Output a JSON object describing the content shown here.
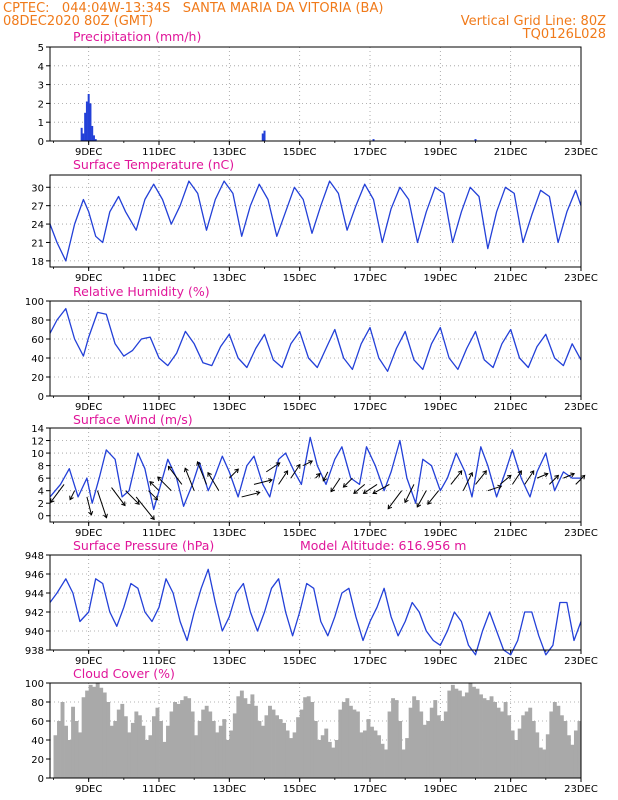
{
  "header": {
    "line1_left": "CPTEC:   044:04W-13:34S   SANTA MARIA DA VITORIA (BA)",
    "line2_left": "08DEC2020 80Z (GMT)",
    "line2_right": "Vertical Grid Line: 80Z",
    "line3_right": "TQ0126L028"
  },
  "colors": {
    "header": "#f07a1a",
    "title": "#e0169a",
    "line": "#2340d8",
    "bar": "#2340d8",
    "cloud": "#a9a9a9",
    "arrow": "#000000"
  },
  "x_axis": {
    "range": [
      7.9,
      23.0
    ],
    "ticks": [
      9,
      11,
      13,
      15,
      17,
      19,
      21,
      23
    ],
    "tick_labels": [
      "9DEC",
      "11DEC",
      "13DEC",
      "15DEC",
      "17DEC",
      "19DEC",
      "21DEC",
      "23DEC"
    ]
  },
  "chart_data": [
    {
      "type": "bar",
      "title": "Precipitation (mm/h)",
      "ylim": [
        0,
        5
      ],
      "yticks": [
        0,
        1,
        2,
        3,
        4,
        5
      ],
      "x": [
        8.8,
        8.85,
        8.9,
        8.95,
        9.0,
        9.05,
        9.1,
        9.15,
        9.2,
        13.95,
        14.0,
        17.1,
        20.0
      ],
      "values": [
        0.7,
        0.4,
        1.5,
        2.1,
        2.5,
        2.0,
        0.8,
        0.3,
        0.1,
        0.4,
        0.55,
        0.1,
        0.1
      ]
    },
    {
      "type": "line",
      "title": "Surface Temperature (nC)",
      "ylim": [
        17,
        32
      ],
      "yticks": [
        18,
        21,
        24,
        27,
        30
      ],
      "x": [
        7.9,
        8.1,
        8.35,
        8.6,
        8.85,
        9.0,
        9.2,
        9.4,
        9.6,
        9.85,
        10.05,
        10.35,
        10.6,
        10.85,
        11.1,
        11.35,
        11.6,
        11.85,
        12.1,
        12.35,
        12.6,
        12.85,
        13.1,
        13.35,
        13.6,
        13.85,
        14.1,
        14.35,
        14.6,
        14.85,
        15.1,
        15.35,
        15.6,
        15.85,
        16.1,
        16.35,
        16.6,
        16.85,
        17.1,
        17.35,
        17.6,
        17.85,
        18.1,
        18.35,
        18.6,
        18.85,
        19.1,
        19.35,
        19.6,
        19.85,
        20.1,
        20.35,
        20.6,
        20.85,
        21.1,
        21.35,
        21.6,
        21.85,
        22.1,
        22.35,
        22.6,
        22.85,
        23.0
      ],
      "values": [
        24,
        21,
        18,
        24,
        28,
        26,
        22,
        21,
        26,
        28.5,
        26,
        23,
        28,
        30.5,
        28,
        24,
        27,
        31,
        29,
        23,
        28,
        31,
        29,
        22,
        27,
        30.5,
        28,
        22,
        26,
        30,
        28,
        22.5,
        27,
        31,
        29,
        23,
        27,
        30.5,
        28,
        21,
        26.5,
        30,
        28,
        21,
        26,
        30,
        29,
        21,
        26,
        30,
        28.5,
        20,
        26,
        30,
        29,
        21,
        25.5,
        29.5,
        28.5,
        21,
        26,
        29.5,
        27
      ]
    },
    {
      "type": "line",
      "title": "Relative Humidity (%)",
      "ylim": [
        0,
        100
      ],
      "yticks": [
        0,
        20,
        40,
        60,
        80,
        100
      ],
      "x": [
        7.9,
        8.1,
        8.35,
        8.6,
        8.85,
        9.0,
        9.25,
        9.5,
        9.75,
        10.0,
        10.25,
        10.5,
        10.75,
        11.0,
        11.25,
        11.5,
        11.75,
        12.0,
        12.25,
        12.5,
        12.75,
        13.0,
        13.25,
        13.5,
        13.75,
        14.0,
        14.25,
        14.5,
        14.75,
        15.0,
        15.25,
        15.5,
        15.75,
        16.0,
        16.25,
        16.5,
        16.75,
        17.0,
        17.25,
        17.5,
        17.75,
        18.0,
        18.25,
        18.5,
        18.75,
        19.0,
        19.25,
        19.5,
        19.75,
        20.0,
        20.25,
        20.5,
        20.75,
        21.0,
        21.25,
        21.5,
        21.75,
        22.0,
        22.25,
        22.5,
        22.75,
        23.0
      ],
      "values": [
        66,
        80,
        92,
        60,
        42,
        62,
        88,
        86,
        55,
        42,
        48,
        60,
        62,
        40,
        32,
        45,
        68,
        55,
        35,
        32,
        52,
        65,
        40,
        30,
        50,
        65,
        38,
        30,
        55,
        68,
        40,
        30,
        50,
        70,
        40,
        28,
        55,
        72,
        40,
        26,
        50,
        68,
        38,
        28,
        55,
        72,
        40,
        28,
        50,
        68,
        38,
        30,
        55,
        70,
        40,
        30,
        52,
        65,
        40,
        32,
        55,
        38
      ]
    },
    {
      "type": "line",
      "title": "Surface Wind (m/s)",
      "ylim": [
        -1,
        14
      ],
      "yticks": [
        0,
        2,
        4,
        6,
        8,
        10,
        12,
        14
      ],
      "x": [
        7.9,
        8.2,
        8.45,
        8.7,
        8.95,
        9.1,
        9.3,
        9.5,
        9.75,
        9.95,
        10.15,
        10.4,
        10.6,
        10.85,
        11.05,
        11.25,
        11.5,
        11.7,
        11.95,
        12.15,
        12.4,
        12.6,
        12.8,
        13.0,
        13.25,
        13.5,
        13.7,
        13.95,
        14.15,
        14.4,
        14.6,
        14.85,
        15.05,
        15.3,
        15.5,
        15.75,
        16.0,
        16.2,
        16.45,
        16.7,
        16.9,
        17.15,
        17.4,
        17.6,
        17.85,
        18.05,
        18.3,
        18.5,
        18.75,
        19.0,
        19.2,
        19.45,
        19.7,
        19.9,
        20.15,
        20.35,
        20.6,
        20.85,
        21.05,
        21.3,
        21.55,
        21.75,
        22.0,
        22.25,
        22.5,
        22.75,
        23.0
      ],
      "values": [
        3,
        5,
        7.5,
        3,
        6,
        2,
        6,
        10.5,
        9,
        3,
        4,
        10,
        7.5,
        1,
        5,
        9,
        6,
        1.5,
        5,
        8.5,
        4,
        6.5,
        9.5,
        7,
        3,
        8,
        9.5,
        5,
        3,
        9,
        10,
        7,
        5,
        12.5,
        8,
        5,
        9,
        11,
        6,
        5,
        11,
        8,
        4,
        7,
        12,
        6,
        2,
        9,
        8,
        4,
        6,
        10,
        7,
        3,
        11,
        8,
        3,
        7,
        10.5,
        6,
        3,
        7,
        10,
        4,
        7,
        6,
        6
      ]
    },
    {
      "type": "line",
      "title": "Surface Pressure (hPa)",
      "annotation": "Model Altitude: 616.956 m",
      "ylim": [
        938,
        948
      ],
      "yticks": [
        938,
        940,
        942,
        944,
        946,
        948
      ],
      "x": [
        7.9,
        8.1,
        8.35,
        8.55,
        8.75,
        9.0,
        9.2,
        9.4,
        9.6,
        9.8,
        10.0,
        10.2,
        10.4,
        10.6,
        10.8,
        11.0,
        11.2,
        11.4,
        11.6,
        11.8,
        12.0,
        12.2,
        12.4,
        12.6,
        12.8,
        13.0,
        13.2,
        13.4,
        13.6,
        13.8,
        14.0,
        14.2,
        14.4,
        14.6,
        14.8,
        15.0,
        15.2,
        15.4,
        15.6,
        15.8,
        16.0,
        16.2,
        16.4,
        16.6,
        16.8,
        17.0,
        17.2,
        17.4,
        17.6,
        17.8,
        18.0,
        18.2,
        18.4,
        18.6,
        18.8,
        19.0,
        19.2,
        19.4,
        19.6,
        19.8,
        20.0,
        20.2,
        20.4,
        20.6,
        20.8,
        21.0,
        21.2,
        21.4,
        21.6,
        21.8,
        22.0,
        22.2,
        22.4,
        22.6,
        22.8,
        23.0
      ],
      "values": [
        943,
        944,
        945.5,
        944,
        941,
        942,
        945.5,
        945,
        942,
        940.5,
        942.5,
        945,
        944.5,
        942,
        941,
        942.5,
        945.5,
        944,
        941,
        939,
        942,
        944.5,
        946.5,
        943,
        940,
        941.5,
        944,
        945,
        942,
        940,
        942,
        944.5,
        945.5,
        942,
        939.5,
        942,
        945,
        944.5,
        941,
        939.5,
        941.5,
        944,
        944.5,
        941.5,
        939,
        941,
        942.5,
        944.5,
        941.5,
        939.5,
        941,
        943,
        942,
        940,
        939,
        938.5,
        940,
        942,
        941,
        938.5,
        937.5,
        940,
        942,
        940,
        938,
        937.5,
        939,
        942,
        942,
        939.5,
        937.5,
        938.5,
        943,
        943,
        939,
        941
      ]
    },
    {
      "type": "bar",
      "title": "Cloud Cover (%)",
      "ylim": [
        0,
        100
      ],
      "yticks": [
        0,
        20,
        40,
        60,
        80,
        100
      ],
      "x": [
        8.0,
        8.1,
        8.2,
        8.3,
        8.4,
        8.5,
        8.6,
        8.7,
        8.8,
        8.9,
        9.0,
        9.1,
        9.2,
        9.3,
        9.4,
        9.5,
        9.6,
        9.7,
        9.8,
        9.9,
        10.0,
        10.1,
        10.2,
        10.3,
        10.4,
        10.5,
        10.6,
        10.7,
        10.8,
        10.9,
        11.0,
        11.1,
        11.2,
        11.3,
        11.4,
        11.5,
        11.6,
        11.7,
        11.8,
        11.9,
        12.0,
        12.1,
        12.2,
        12.3,
        12.4,
        12.5,
        12.6,
        12.7,
        12.8,
        12.9,
        13.0,
        13.1,
        13.2,
        13.3,
        13.4,
        13.5,
        13.6,
        13.7,
        13.8,
        13.9,
        14.0,
        14.1,
        14.2,
        14.3,
        14.4,
        14.5,
        14.6,
        14.7,
        14.8,
        14.9,
        15.0,
        15.1,
        15.2,
        15.3,
        15.4,
        15.5,
        15.6,
        15.7,
        15.8,
        15.9,
        16.0,
        16.1,
        16.2,
        16.3,
        16.4,
        16.5,
        16.6,
        16.7,
        16.8,
        16.9,
        17.0,
        17.1,
        17.2,
        17.3,
        17.4,
        17.5,
        17.6,
        17.7,
        17.8,
        17.9,
        18.0,
        18.1,
        18.2,
        18.3,
        18.4,
        18.5,
        18.6,
        18.7,
        18.8,
        18.9,
        19.0,
        19.1,
        19.2,
        19.3,
        19.4,
        19.5,
        19.6,
        19.7,
        19.8,
        19.9,
        20.0,
        20.1,
        20.2,
        20.3,
        20.4,
        20.5,
        20.6,
        20.7,
        20.8,
        20.9,
        21.0,
        21.1,
        21.2,
        21.3,
        21.4,
        21.5,
        21.6,
        21.7,
        21.8,
        21.9,
        22.0,
        22.1,
        22.2,
        22.3,
        22.4,
        22.5,
        22.6,
        22.7,
        22.8,
        22.9
      ],
      "values": [
        45,
        60,
        80,
        55,
        40,
        75,
        60,
        48,
        85,
        92,
        98,
        96,
        100,
        95,
        90,
        80,
        55,
        60,
        72,
        78,
        65,
        48,
        58,
        70,
        66,
        55,
        40,
        45,
        65,
        74,
        60,
        38,
        55,
        70,
        80,
        78,
        82,
        86,
        84,
        70,
        45,
        60,
        72,
        76,
        70,
        60,
        48,
        55,
        62,
        40,
        50,
        68,
        86,
        92,
        84,
        78,
        88,
        76,
        60,
        55,
        66,
        76,
        72,
        66,
        62,
        58,
        50,
        42,
        48,
        64,
        72,
        85,
        86,
        80,
        60,
        40,
        45,
        52,
        38,
        32,
        40,
        72,
        80,
        84,
        76,
        72,
        70,
        48,
        50,
        62,
        54,
        50,
        45,
        36,
        30,
        70,
        84,
        82,
        60,
        30,
        42,
        74,
        86,
        82,
        70,
        56,
        60,
        74,
        82,
        66,
        60,
        70,
        92,
        98,
        94,
        92,
        86,
        90,
        100,
        96,
        94,
        88,
        84,
        82,
        86,
        80,
        74,
        70,
        80,
        66,
        50,
        40,
        52,
        66,
        70,
        74,
        60,
        48,
        32,
        30,
        46,
        70,
        80,
        76,
        66,
        60,
        45,
        35,
        50,
        60
      ]
    }
  ],
  "wind_arrows": {
    "description": "wind direction vectors (u,v) at sampled times",
    "x": [
      8.3,
      8.6,
      8.95,
      9.25,
      9.65,
      10.05,
      10.35,
      10.7,
      11.0,
      11.35,
      11.65,
      12.0,
      12.35,
      12.7,
      13.0,
      13.35,
      13.7,
      14.05,
      14.4,
      14.75,
      15.1,
      15.45,
      15.8,
      16.15,
      16.5,
      16.85,
      17.2,
      17.55,
      17.9,
      18.25,
      18.6,
      18.95,
      19.3,
      19.65,
      20.0,
      20.35,
      20.7,
      21.05,
      21.4,
      21.75,
      22.1,
      22.5,
      22.85
    ],
    "y": [
      5,
      4,
      3,
      4,
      4.5,
      4,
      3,
      4,
      4,
      4,
      5,
      4,
      5,
      4,
      6,
      3,
      5,
      7,
      5,
      6,
      8,
      6,
      7,
      6,
      6,
      5,
      5,
      5,
      4,
      5,
      4,
      4,
      5,
      4,
      5,
      4,
      5,
      5,
      5,
      6,
      5,
      6,
      5
    ],
    "u": [
      -1.5,
      -0.5,
      0.5,
      1,
      1.5,
      1.5,
      2,
      1,
      -1,
      -1.5,
      -1.5,
      -1,
      -1,
      -1.2,
      1,
      2,
      2,
      1.5,
      1,
      1,
      1,
      0.5,
      -0.5,
      -1,
      -1,
      -1.2,
      -1.5,
      -1.8,
      -1.5,
      -1,
      -1,
      -1.2,
      1.2,
      1,
      1.2,
      1.5,
      1.2,
      1,
      1,
      1.2,
      1,
      1.2,
      1
    ],
    "v": [
      -2,
      -1,
      -2,
      -3,
      -2,
      -1.5,
      -2.5,
      -1,
      1,
      1.5,
      2,
      2.5,
      2.5,
      2,
      1,
      0.5,
      0.5,
      1,
      1.5,
      1.5,
      0.5,
      0.5,
      -1,
      -1.5,
      -1,
      -1,
      -1,
      -1,
      -2,
      -2,
      -1.8,
      -1.5,
      1.5,
      2,
      1.5,
      0.5,
      1,
      1.5,
      1.5,
      0.5,
      1,
      0.5,
      1
    ]
  }
}
